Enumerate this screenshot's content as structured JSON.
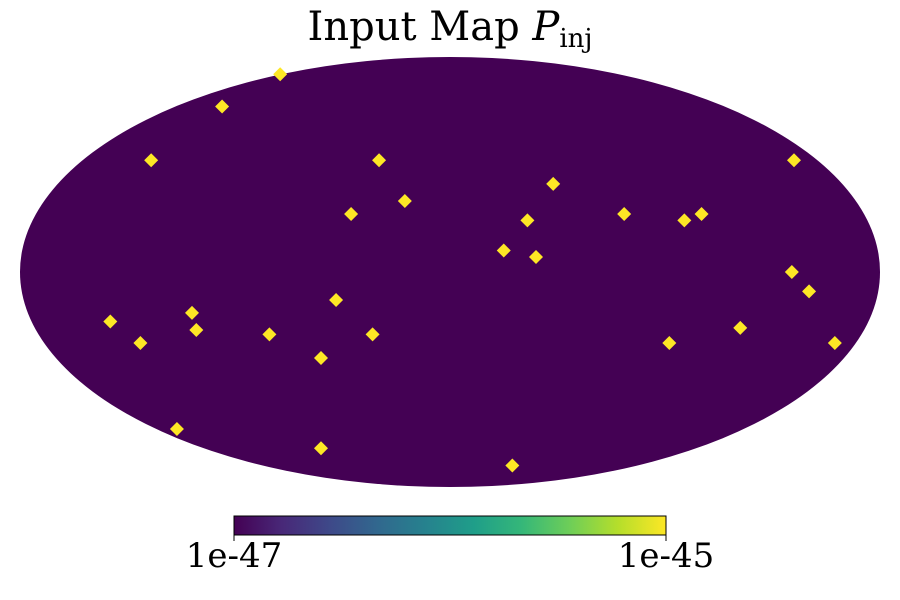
{
  "chart_data": {
    "type": "mollweide",
    "title": "Input Map",
    "title_symbol": "P",
    "title_subscript": "inj",
    "xlim": [
      -2,
      2
    ],
    "ylim": [
      -1,
      1
    ],
    "background_value": 1e-47,
    "x": [
      -0.79,
      -1.06,
      -1.39,
      -0.33,
      -0.21,
      0.48,
      -0.46,
      0.36,
      0.81,
      1.09,
      1.17,
      1.6,
      0.25,
      0.4,
      1.59,
      1.67,
      -0.53,
      -1.58,
      -1.44,
      -1.2,
      -1.18,
      -0.84,
      -0.36,
      -0.6,
      1.02,
      1.35,
      1.79,
      -1.27,
      -0.6,
      0.29
    ],
    "y": [
      0.92,
      0.77,
      0.52,
      0.52,
      0.33,
      0.41,
      0.27,
      0.24,
      0.27,
      0.24,
      0.27,
      0.52,
      0.1,
      0.07,
      0.0,
      -0.09,
      -0.13,
      -0.23,
      -0.33,
      -0.19,
      -0.27,
      -0.29,
      -0.29,
      -0.4,
      -0.33,
      -0.26,
      -0.33,
      -0.73,
      -0.82,
      -0.9
    ],
    "values": [
      1e-45,
      1e-45,
      1e-45,
      1e-45,
      1e-45,
      1e-45,
      1e-45,
      1e-45,
      1e-45,
      1e-45,
      1e-45,
      1e-45,
      1e-45,
      1e-45,
      1e-45,
      1e-45,
      1e-45,
      1e-45,
      1e-45,
      1e-45,
      1e-45,
      1e-45,
      1e-45,
      1e-45,
      1e-45,
      1e-45,
      1e-45,
      1e-45,
      1e-45,
      1e-45
    ],
    "colorbar": {
      "log": true,
      "lim": [
        1e-47,
        1e-45
      ],
      "ticks": [
        {
          "value": 1e-47,
          "label": "1e-47"
        },
        {
          "value": 1e-45,
          "label": "1e-45"
        }
      ],
      "colormap": [
        "#440154",
        "#482878",
        "#3e4989",
        "#31688e",
        "#26828e",
        "#1f9e89",
        "#35b779",
        "#6ece58",
        "#b5de2b",
        "#fde725"
      ]
    }
  }
}
